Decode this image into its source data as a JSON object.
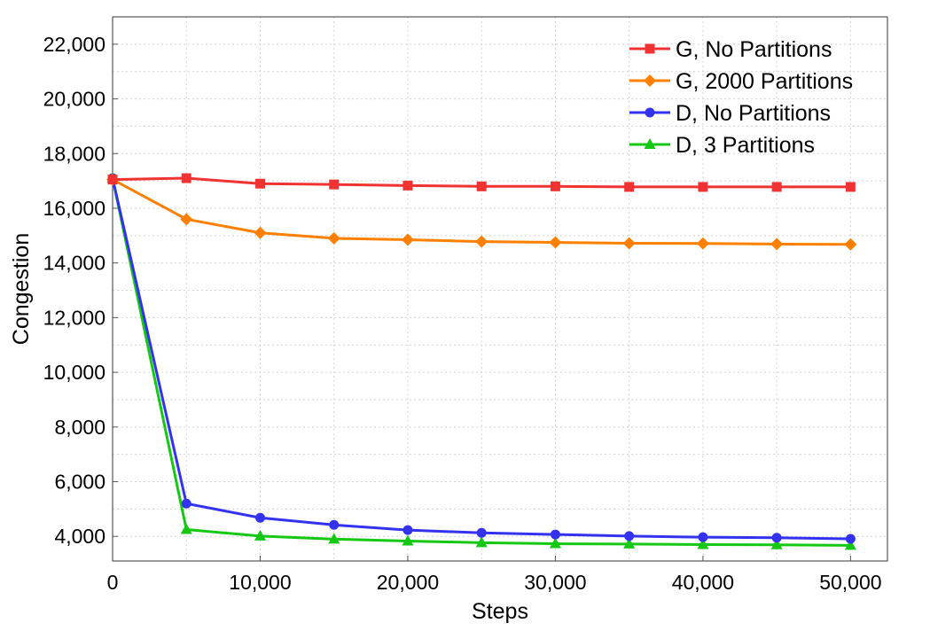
{
  "chart_data": {
    "type": "line",
    "xlabel": "Steps",
    "ylabel": "Congestion",
    "xlim": [
      0,
      52500
    ],
    "ylim": [
      3100,
      23000
    ],
    "xticks": [
      0,
      10000,
      20000,
      30000,
      40000,
      50000
    ],
    "xtick_labels": [
      "0",
      "10,000",
      "20,000",
      "30,000",
      "40,000",
      "50,000"
    ],
    "yticks": [
      4000,
      6000,
      8000,
      10000,
      12000,
      14000,
      16000,
      18000,
      20000,
      22000
    ],
    "ytick_labels": [
      "4,000",
      "6,000",
      "8,000",
      "10,000",
      "12,000",
      "14,000",
      "16,000",
      "18,000",
      "20,000",
      "22,000"
    ],
    "grid": true,
    "legend_position": "top-right",
    "x": [
      0,
      5000,
      10000,
      15000,
      20000,
      25000,
      30000,
      35000,
      40000,
      45000,
      50000
    ],
    "series": [
      {
        "name": "G, No Partitions",
        "color": "#f03232",
        "marker": "square",
        "values": [
          17050,
          17100,
          16900,
          16870,
          16830,
          16800,
          16800,
          16780,
          16780,
          16780,
          16780
        ]
      },
      {
        "name": "G, 2000 Partitions",
        "color": "#ff8000",
        "marker": "diamond",
        "values": [
          17050,
          15600,
          15100,
          14900,
          14850,
          14780,
          14750,
          14720,
          14710,
          14690,
          14680
        ]
      },
      {
        "name": "D, No Partitions",
        "color": "#3232f0",
        "marker": "circle",
        "values": [
          17100,
          5200,
          4680,
          4420,
          4230,
          4130,
          4070,
          4010,
          3970,
          3950,
          3910
        ]
      },
      {
        "name": "D, 3 Partitions",
        "color": "#14c814",
        "marker": "triangle",
        "values": [
          17100,
          4250,
          4010,
          3900,
          3830,
          3770,
          3730,
          3720,
          3700,
          3690,
          3670
        ]
      }
    ]
  }
}
